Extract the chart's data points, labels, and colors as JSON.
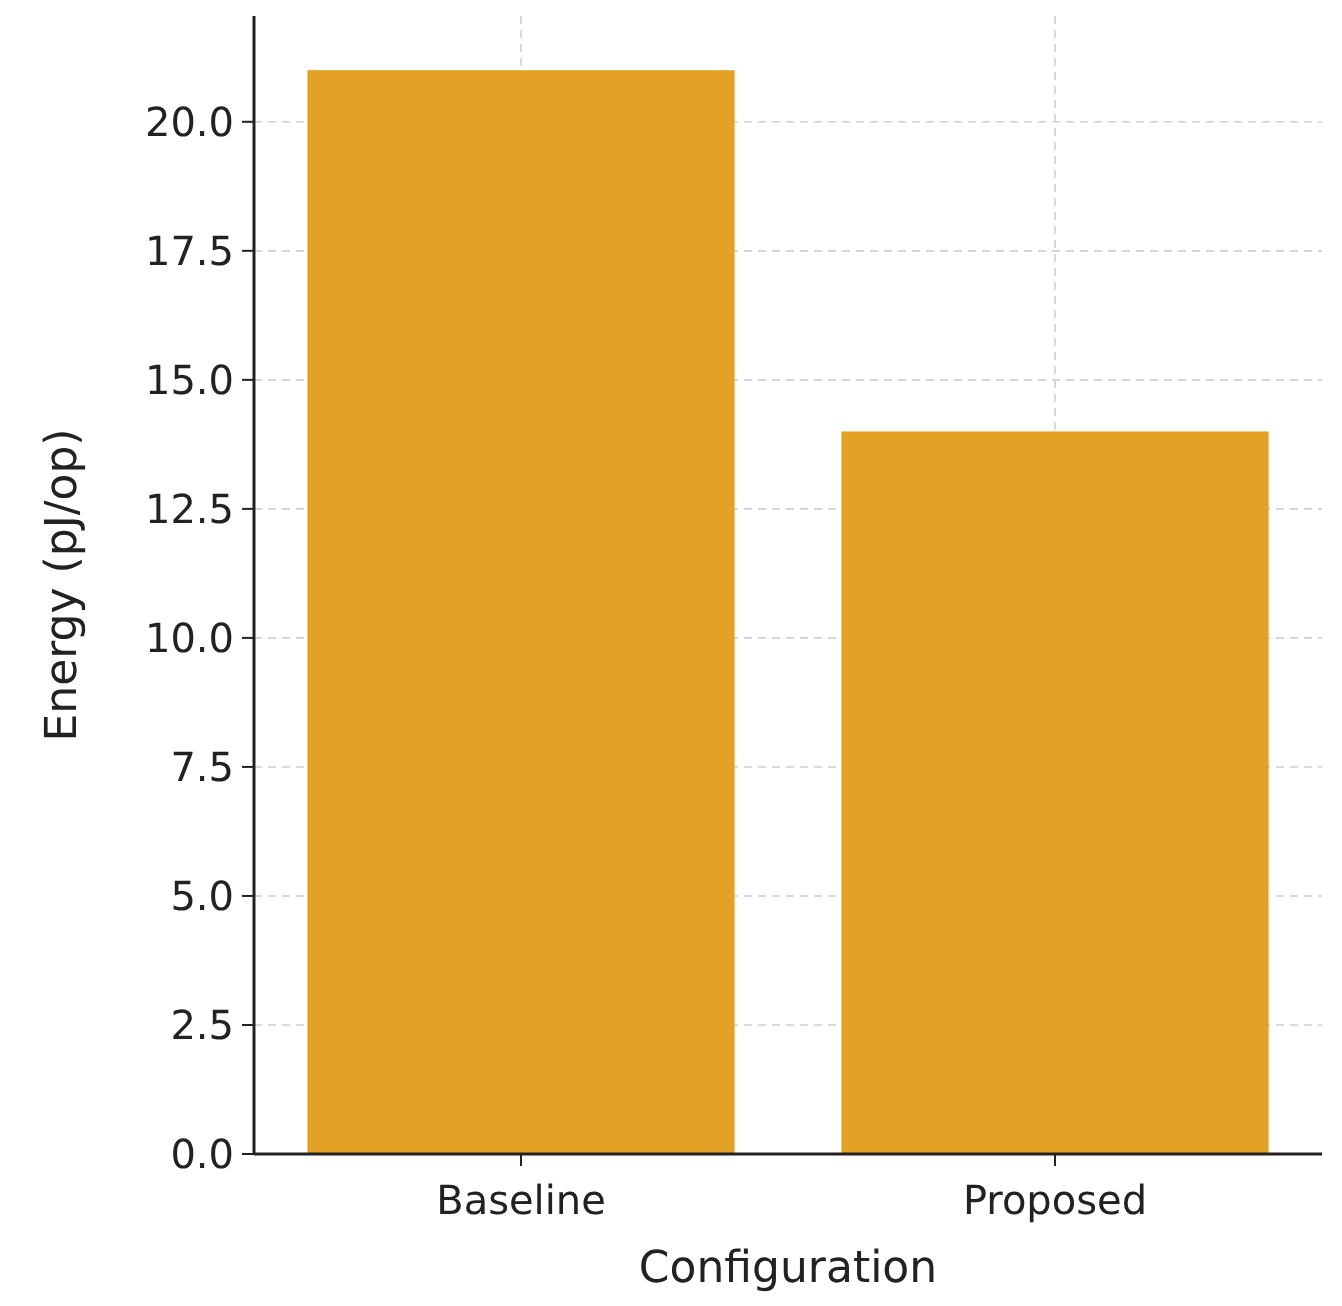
{
  "chart_data": {
    "type": "bar",
    "xlabel": "Configuration",
    "ylabel": "Energy (pJ/op)",
    "categories": [
      "Baseline",
      "Proposed"
    ],
    "values": [
      21,
      14
    ],
    "color": "#e3a126",
    "ylim": [
      0,
      22.05
    ],
    "yticks": [
      {
        "value": 0,
        "label": "0.0"
      },
      {
        "value": 2.5,
        "label": "2.5"
      },
      {
        "value": 5,
        "label": "5.0"
      },
      {
        "value": 7.5,
        "label": "7.5"
      },
      {
        "value": 10,
        "label": "10.0"
      },
      {
        "value": 12.5,
        "label": "12.5"
      },
      {
        "value": 15,
        "label": "15.0"
      },
      {
        "value": 17.5,
        "label": "17.5"
      },
      {
        "value": 20,
        "label": "20.0"
      }
    ],
    "grid": true
  }
}
